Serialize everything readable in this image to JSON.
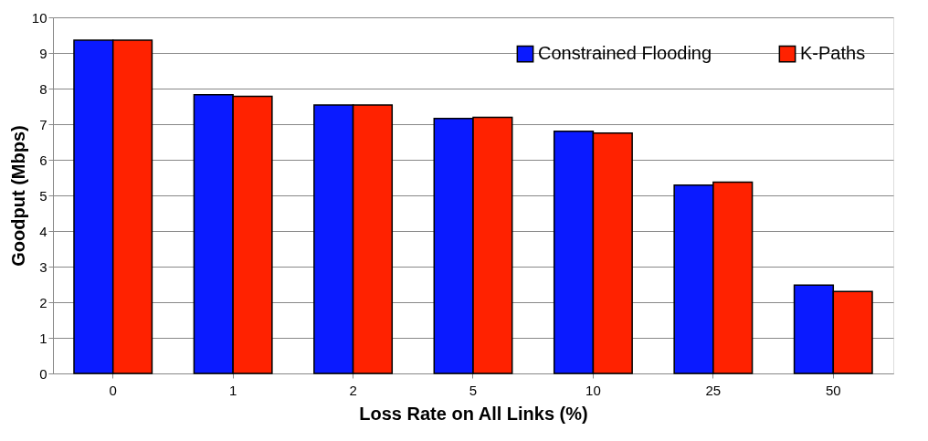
{
  "chart_data": {
    "type": "bar",
    "xlabel": "Loss Rate on All Links (%)",
    "ylabel": "Goodput (Mbps)",
    "categories": [
      "0",
      "1",
      "2",
      "5",
      "10",
      "25",
      "50"
    ],
    "series": [
      {
        "name": "Constrained Flooding",
        "color": "#0a1aff",
        "values": [
          9.36,
          7.83,
          7.54,
          7.16,
          6.8,
          5.29,
          2.48
        ]
      },
      {
        "name": "K-Paths",
        "color": "#ff2200",
        "values": [
          9.36,
          7.78,
          7.54,
          7.19,
          6.75,
          5.37,
          2.3
        ]
      }
    ],
    "ylim": [
      0,
      10
    ],
    "yticks": [
      0,
      1,
      2,
      3,
      4,
      5,
      6,
      7,
      8,
      9,
      10
    ],
    "grid": "y",
    "legend": "top right"
  }
}
